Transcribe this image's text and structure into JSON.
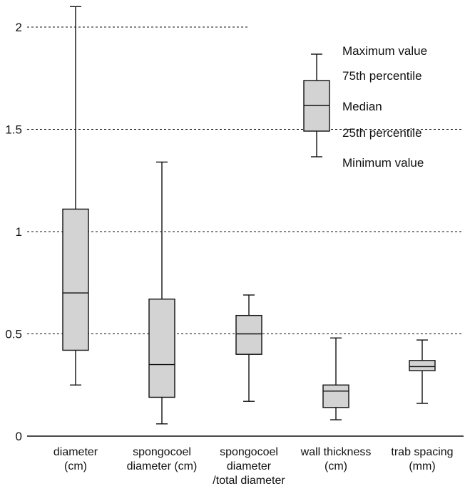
{
  "chart_data": {
    "type": "boxplot",
    "title": "",
    "xlabel": "",
    "ylabel": "",
    "ylim": [
      0,
      2.1
    ],
    "yticks": [
      {
        "value": 0,
        "label": "0"
      },
      {
        "value": 0.5,
        "label": "0.5"
      },
      {
        "value": 1,
        "label": "1"
      },
      {
        "value": 1.5,
        "label": "1.5"
      },
      {
        "value": 2,
        "label": "2"
      }
    ],
    "grid_values": [
      0.5,
      1,
      1.5,
      2
    ],
    "categories": [
      {
        "lines": [
          "diameter",
          "(cm)"
        ],
        "min": 0.25,
        "q1": 0.42,
        "median": 0.7,
        "q3": 1.11,
        "max": 2.1
      },
      {
        "lines": [
          "spongocoel",
          "diameter (cm)"
        ],
        "min": 0.06,
        "q1": 0.19,
        "median": 0.35,
        "q3": 0.67,
        "max": 1.34
      },
      {
        "lines": [
          "spongocoel",
          "diameter",
          "/total diameter"
        ],
        "min": 0.17,
        "q1": 0.4,
        "median": 0.5,
        "q3": 0.59,
        "max": 0.69
      },
      {
        "lines": [
          "wall thickness",
          "(cm)"
        ],
        "min": 0.08,
        "q1": 0.14,
        "median": 0.22,
        "q3": 0.25,
        "max": 0.48
      },
      {
        "lines": [
          "trab spacing",
          "(mm)"
        ],
        "min": 0.16,
        "q1": 0.32,
        "median": 0.34,
        "q3": 0.37,
        "max": 0.47
      }
    ],
    "legend": {
      "placement": "top-right",
      "items": [
        "Maximum value",
        "75th percentile",
        "Median",
        "25th percentile",
        "Minimum value"
      ]
    }
  }
}
